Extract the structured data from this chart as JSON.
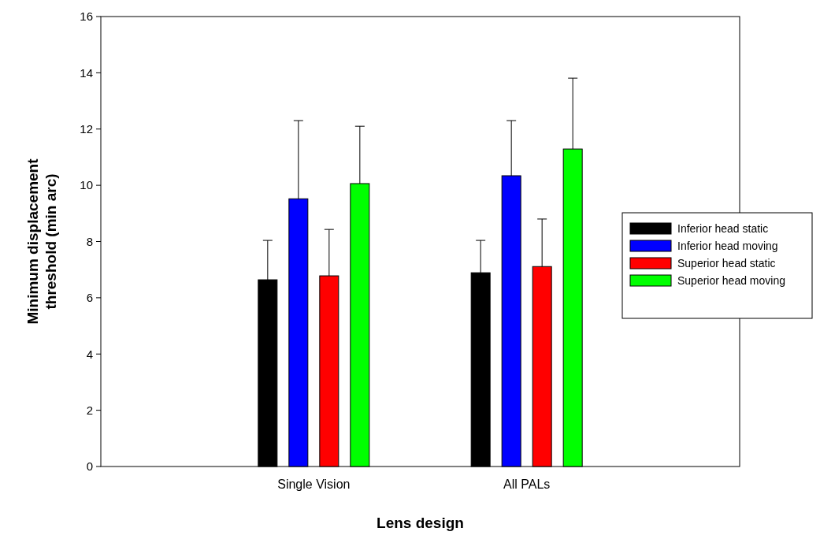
{
  "chart_data": {
    "type": "bar",
    "xlabel": "Lens design",
    "ylabel": "Minimum displacement threshold (min arc)",
    "categories": [
      "Single Vision",
      "All PALs"
    ],
    "series": [
      {
        "name": "Inferior head static",
        "color": "#000000",
        "values": [
          6.64,
          6.89
        ],
        "errors": [
          [
            6.64,
            8.04
          ],
          [
            6.89,
            8.04
          ]
        ]
      },
      {
        "name": "Inferior head moving",
        "color": "#0000ff",
        "values": [
          9.52,
          10.34
        ],
        "errors": [
          [
            9.52,
            12.3
          ],
          [
            10.34,
            12.3
          ]
        ]
      },
      {
        "name": "Superior head static",
        "color": "#ff0000",
        "values": [
          6.78,
          7.11
        ],
        "errors": [
          [
            6.78,
            8.43
          ],
          [
            7.11,
            8.8
          ]
        ]
      },
      {
        "name": "Superior head moving",
        "color": "#00ff00",
        "values": [
          10.06,
          11.29
        ],
        "errors": [
          [
            10.06,
            12.1
          ],
          [
            11.29,
            13.81
          ]
        ]
      }
    ],
    "ylim": [
      0,
      16
    ],
    "yticks": [
      0,
      2,
      4,
      6,
      8,
      10,
      12,
      14,
      16
    ],
    "legend": "right"
  }
}
